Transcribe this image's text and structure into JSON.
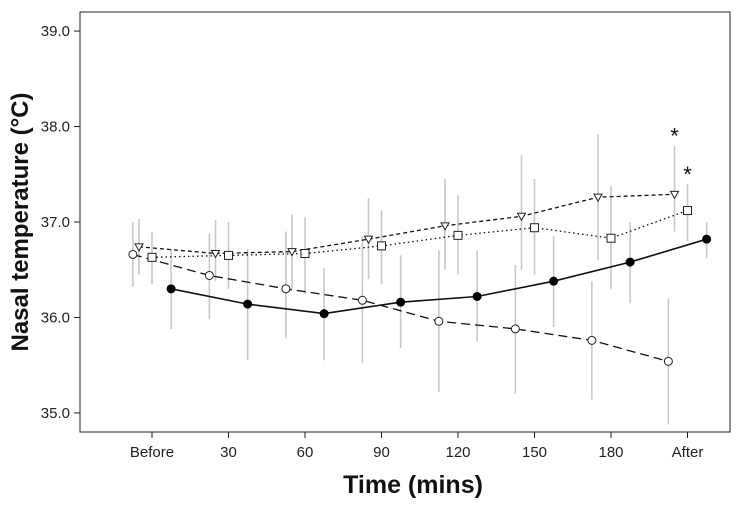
{
  "chart_data": {
    "type": "line",
    "title": "",
    "xlabel": "Time (mins)",
    "ylabel": "Nasal temperature (°C)",
    "categories": [
      "Before",
      "30",
      "60",
      "90",
      "120",
      "150",
      "180",
      "After"
    ],
    "ylim": [
      34.8,
      39.2
    ],
    "yticks": [
      35.0,
      36.0,
      37.0,
      38.0,
      39.0
    ],
    "ytick_labels": [
      "35.0",
      "36.0",
      "37.0",
      "38.0",
      "39.0"
    ],
    "grid": false,
    "annotations": [
      {
        "text": "*",
        "series": "Triangle (short dash)",
        "category": "After"
      },
      {
        "text": "*",
        "series": "Square (dotted)",
        "category": "After"
      }
    ],
    "series": [
      {
        "name": "Filled circle (solid)",
        "marker": "filled-circle",
        "line": "solid",
        "offset": 0.25,
        "values": [
          36.3,
          36.14,
          36.04,
          36.16,
          36.22,
          36.38,
          36.58,
          36.82
        ],
        "err_low": [
          35.88,
          35.55,
          35.55,
          35.68,
          35.75,
          35.9,
          36.15,
          36.62
        ],
        "err_high": [
          36.72,
          36.72,
          36.52,
          36.65,
          36.7,
          36.85,
          37.0,
          37.0
        ]
      },
      {
        "name": "Open circle (long dash)",
        "marker": "open-circle",
        "line": "long-dash",
        "offset": -0.25,
        "values": [
          36.66,
          36.44,
          36.3,
          36.18,
          35.96,
          35.88,
          35.76,
          35.54
        ],
        "err_low": [
          36.32,
          35.98,
          35.78,
          35.52,
          35.22,
          35.2,
          35.14,
          34.88
        ],
        "err_high": [
          37.0,
          36.88,
          36.9,
          36.85,
          36.7,
          36.55,
          36.38,
          36.2
        ]
      },
      {
        "name": "Triangle (short dash)",
        "marker": "triangle-down",
        "line": "short-dash",
        "offset": -0.17,
        "values": [
          36.74,
          36.67,
          36.69,
          36.82,
          36.96,
          37.06,
          37.26,
          37.29
        ],
        "err_low": [
          36.45,
          36.38,
          36.3,
          36.4,
          36.5,
          36.5,
          36.6,
          36.9
        ],
        "err_high": [
          37.03,
          37.02,
          37.08,
          37.25,
          37.45,
          37.7,
          37.92,
          37.8
        ]
      },
      {
        "name": "Square (dotted)",
        "marker": "open-square",
        "line": "dotted",
        "offset": 0.0,
        "values": [
          36.63,
          36.65,
          36.67,
          36.75,
          36.86,
          36.94,
          36.83,
          37.12
        ],
        "err_low": [
          36.35,
          36.3,
          36.25,
          36.35,
          36.45,
          36.45,
          36.3,
          36.8
        ],
        "err_high": [
          36.9,
          37.0,
          37.05,
          37.12,
          37.28,
          37.45,
          37.38,
          37.4
        ]
      }
    ]
  }
}
